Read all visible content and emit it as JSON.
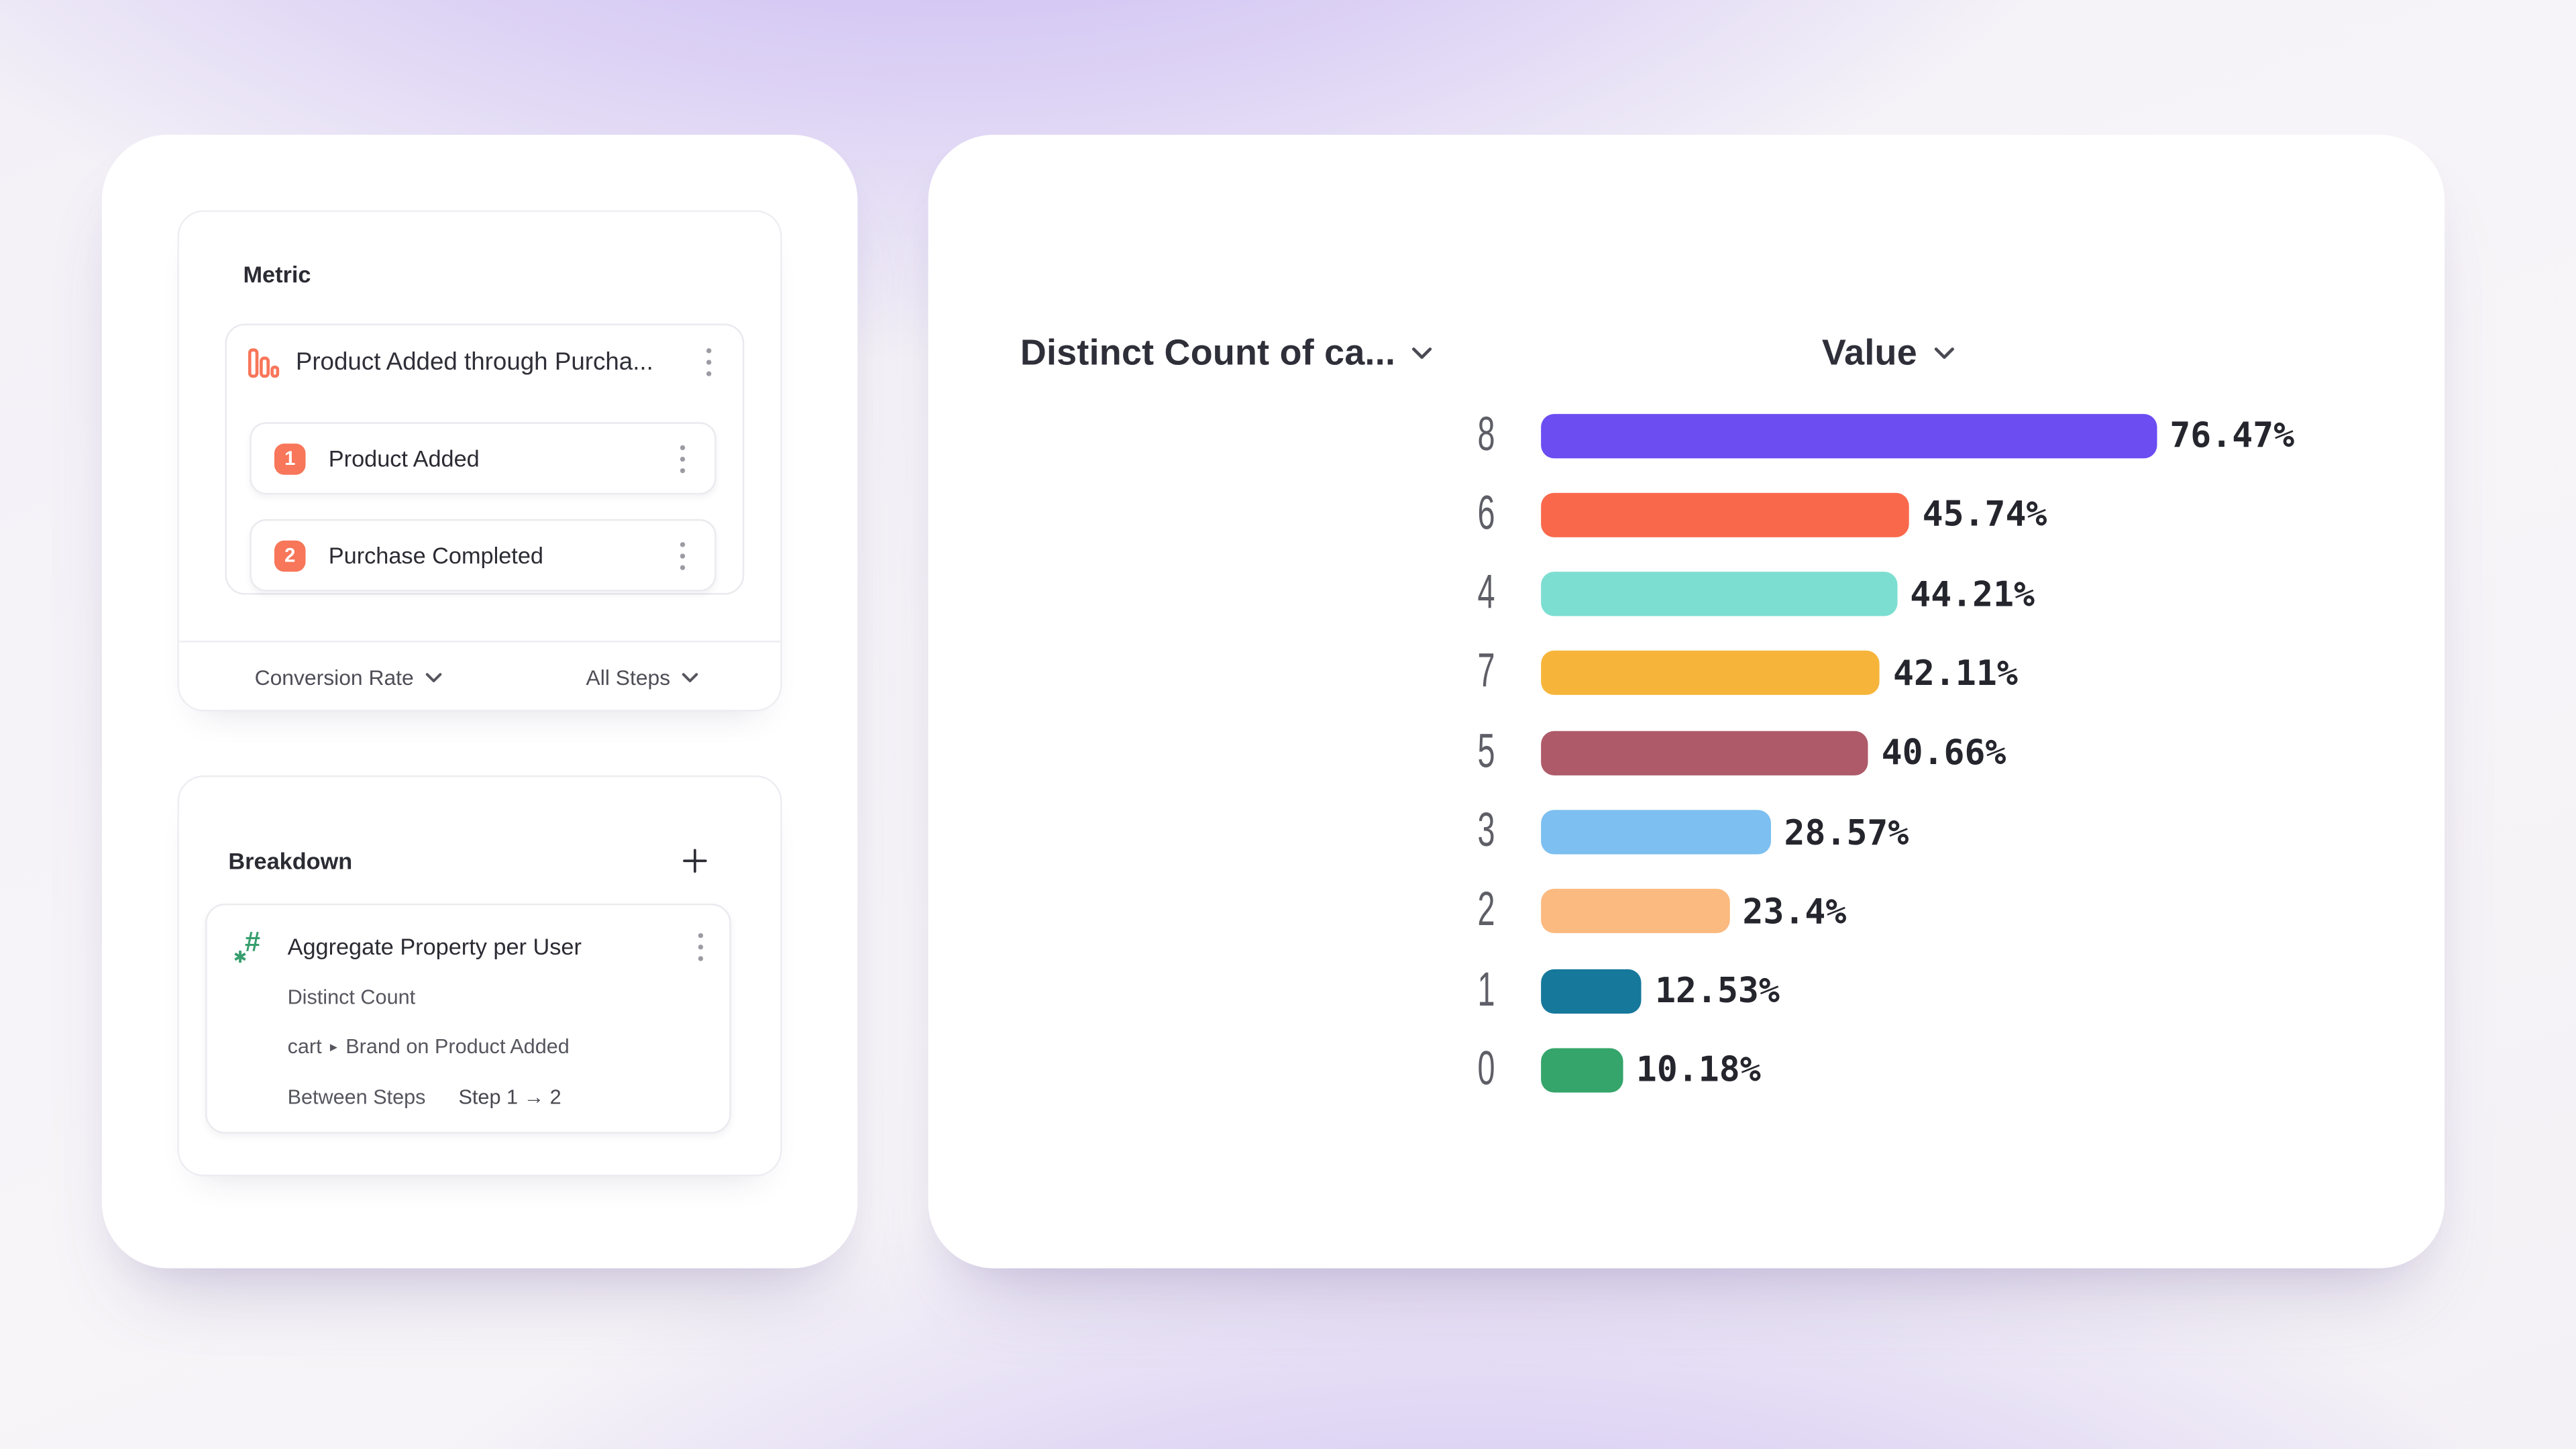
{
  "metric_panel": {
    "title": "Metric",
    "funnel_event": {
      "name": "Product Added through Purcha..."
    },
    "steps": [
      {
        "number": "1",
        "label": "Product Added"
      },
      {
        "number": "2",
        "label": "Purchase Completed"
      }
    ],
    "footer": {
      "conversion_dropdown": "Conversion Rate",
      "steps_dropdown": "All Steps"
    }
  },
  "breakdown_panel": {
    "title": "Breakdown",
    "property_card": {
      "name": "Aggregate Property per User",
      "aggregation": "Distinct Count",
      "property_parent": "cart",
      "property_name": "Brand on Product Added",
      "between_steps_label": "Between Steps",
      "between_steps_value": "Step 1 → 2"
    }
  },
  "chart": {
    "category_header": "Distinct Count of ca...",
    "value_header": "Value"
  },
  "chart_data": {
    "type": "bar",
    "orientation": "horizontal",
    "title": "",
    "xlabel": "Value (%)",
    "ylabel": "Distinct Count of cart",
    "categories": [
      "8",
      "6",
      "4",
      "7",
      "5",
      "3",
      "2",
      "1",
      "0"
    ],
    "values": [
      76.47,
      45.74,
      44.21,
      42.11,
      40.66,
      28.57,
      23.4,
      12.53,
      10.18
    ],
    "value_labels": [
      "76.47%",
      "45.74%",
      "44.21%",
      "42.11%",
      "40.66%",
      "28.57%",
      "23.4%",
      "12.53%",
      "10.18%"
    ],
    "bar_colors": [
      "#6B4DF2",
      "#F9684B",
      "#7CDED1",
      "#F6B53A",
      "#AE5A69",
      "#7CBFF0",
      "#FBBA80",
      "#16789B",
      "#35A56B"
    ],
    "xlim": [
      0,
      100
    ],
    "grid": false,
    "legend": false
  },
  "colors": {
    "accent_orange": "#F87659",
    "accent_green": "#379E6E",
    "background_purple": "#8C69EC"
  }
}
